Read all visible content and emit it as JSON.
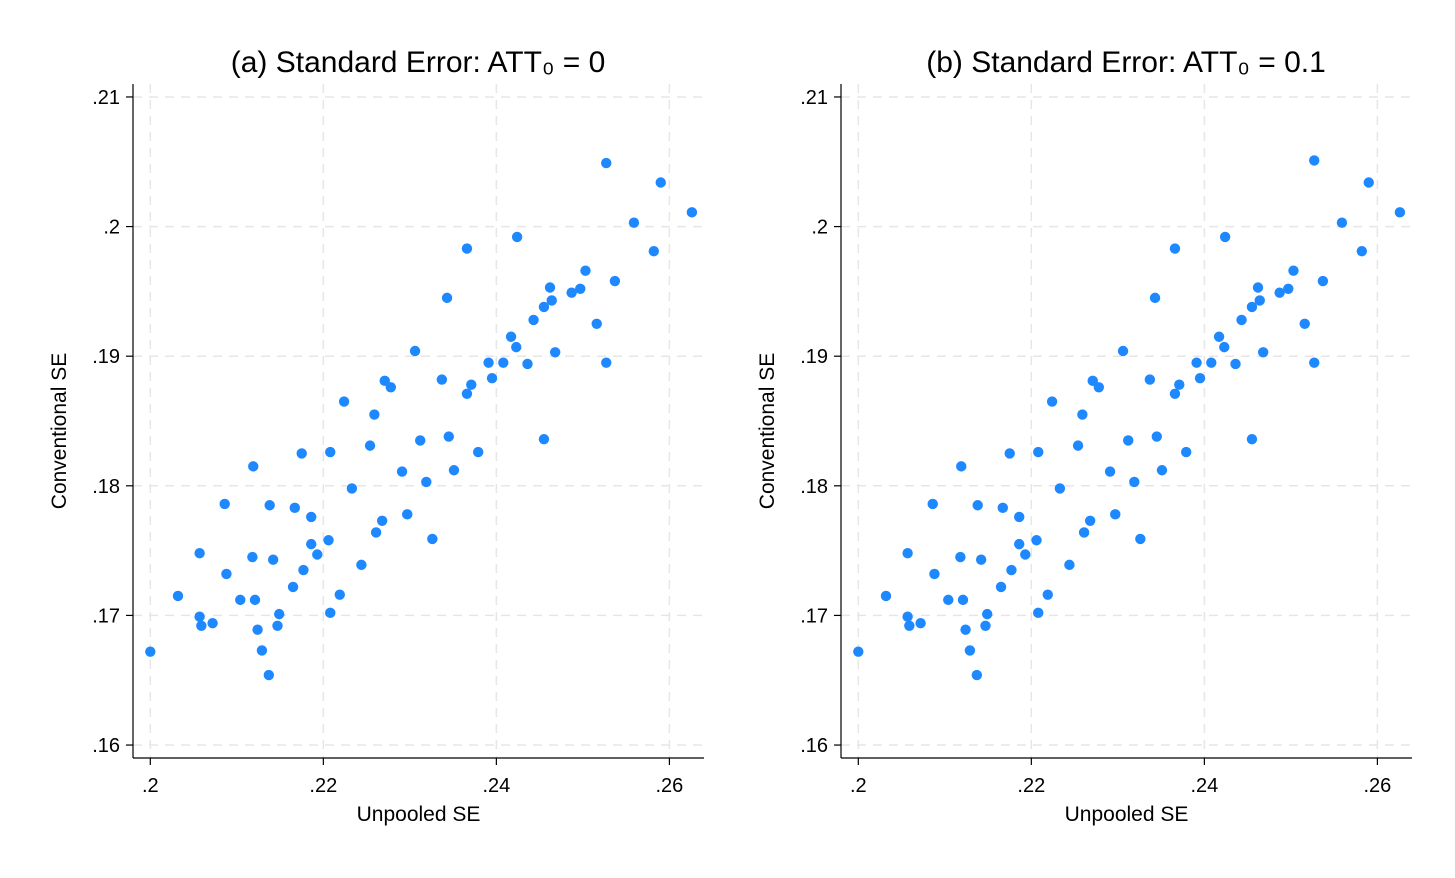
{
  "figure": {
    "panels": [
      {
        "title": "(a) Standard Error: ATT₀ = 0"
      },
      {
        "title": "(b) Standard Error: ATT₀ = 0.1"
      }
    ]
  },
  "chart_data": [
    {
      "type": "scatter",
      "title": "(a) Standard Error: ATT₀ = 0",
      "xlabel": "Unpooled SE",
      "ylabel": "Conventional SE",
      "xlim": [
        0.198,
        0.264
      ],
      "ylim": [
        0.159,
        0.211
      ],
      "xticks": [
        0.2,
        0.22,
        0.24,
        0.26
      ],
      "xtick_labels": [
        ".2",
        ".22",
        ".24",
        ".26"
      ],
      "yticks": [
        0.16,
        0.17,
        0.18,
        0.19,
        0.2,
        0.21
      ],
      "ytick_labels": [
        ".16",
        ".17",
        ".18",
        ".19",
        ".2",
        ".21"
      ],
      "grid": true,
      "marker_color": "#1e88ff",
      "series": [
        {
          "x": [
            0.2,
            0.2032,
            0.2057,
            0.2057,
            0.2059,
            0.2072,
            0.2086,
            0.2088,
            0.2119,
            0.2124,
            0.2129,
            0.2137,
            0.2147,
            0.2149,
            0.2165,
            0.2177,
            0.2186,
            0.2193,
            0.2206,
            0.2219,
            0.2244,
            0.2261,
            0.2319,
            0.2345,
            0.2371,
            0.2395,
            0.2423,
            0.2455,
            0.2462,
            0.2503,
            0.2527,
            0.2537,
            0.2559,
            0.2582,
            0.259,
            0.2626,
            0.2104,
            0.2118,
            0.2138,
            0.2167,
            0.2175,
            0.2186,
            0.2208,
            0.2233,
            0.2259,
            0.2278,
            0.2291,
            0.2312,
            0.2337,
            0.2366,
            0.2391,
            0.2417,
            0.2443,
            0.2464,
            0.2487,
            0.2516,
            0.2527,
            0.2455,
            0.2366,
            0.2306,
            0.2268,
            0.2208,
            0.2142,
            0.2121,
            0.2224,
            0.2254,
            0.2271,
            0.2297,
            0.2326,
            0.2351,
            0.2379,
            0.2408,
            0.2436,
            0.2468,
            0.2497,
            0.2424,
            0.2343
          ],
          "y": [
            0.1672,
            0.1715,
            0.1699,
            0.1748,
            0.1692,
            0.1694,
            0.1786,
            0.1732,
            0.1815,
            0.1689,
            0.1673,
            0.1654,
            0.1692,
            0.1701,
            0.1722,
            0.1735,
            0.1755,
            0.1747,
            0.1758,
            0.1716,
            0.1739,
            0.1764,
            0.1803,
            0.1838,
            0.1878,
            0.1883,
            0.1907,
            0.1938,
            0.1953,
            0.1966,
            0.2049,
            0.1958,
            0.2003,
            0.1981,
            0.2034,
            0.2011,
            0.1712,
            0.1745,
            0.1785,
            0.1783,
            0.1825,
            0.1776,
            0.1826,
            0.1798,
            0.1855,
            0.1876,
            0.1811,
            0.1835,
            0.1882,
            0.1871,
            0.1895,
            0.1915,
            0.1928,
            0.1943,
            0.1949,
            0.1925,
            0.1895,
            0.1836,
            0.1983,
            0.1904,
            0.1773,
            0.1702,
            0.1743,
            0.1712,
            0.1865,
            0.1831,
            0.1881,
            0.1778,
            0.1759,
            0.1812,
            0.1826,
            0.1895,
            0.1894,
            0.1903,
            0.1952,
            0.1992,
            0.1945
          ]
        }
      ]
    },
    {
      "type": "scatter",
      "title": "(b) Standard Error: ATT₀ = 0.1",
      "xlabel": "Unpooled SE",
      "ylabel": "Conventional SE",
      "xlim": [
        0.198,
        0.264
      ],
      "ylim": [
        0.159,
        0.211
      ],
      "xticks": [
        0.2,
        0.22,
        0.24,
        0.26
      ],
      "xtick_labels": [
        ".2",
        ".22",
        ".24",
        ".26"
      ],
      "yticks": [
        0.16,
        0.17,
        0.18,
        0.19,
        0.2,
        0.21
      ],
      "ytick_labels": [
        ".16",
        ".17",
        ".18",
        ".19",
        ".2",
        ".21"
      ],
      "grid": true,
      "marker_color": "#1e88ff",
      "series": [
        {
          "x": [
            0.2,
            0.2032,
            0.2057,
            0.2057,
            0.2059,
            0.2072,
            0.2086,
            0.2088,
            0.2119,
            0.2124,
            0.2129,
            0.2137,
            0.2147,
            0.2149,
            0.2165,
            0.2177,
            0.2186,
            0.2193,
            0.2206,
            0.2219,
            0.2244,
            0.2261,
            0.2319,
            0.2345,
            0.2371,
            0.2395,
            0.2423,
            0.2455,
            0.2462,
            0.2503,
            0.2527,
            0.2537,
            0.2559,
            0.2582,
            0.259,
            0.2626,
            0.2104,
            0.2118,
            0.2138,
            0.2167,
            0.2175,
            0.2186,
            0.2208,
            0.2233,
            0.2259,
            0.2278,
            0.2291,
            0.2312,
            0.2337,
            0.2366,
            0.2391,
            0.2417,
            0.2443,
            0.2464,
            0.2487,
            0.2516,
            0.2527,
            0.2455,
            0.2366,
            0.2306,
            0.2268,
            0.2208,
            0.2142,
            0.2121,
            0.2224,
            0.2254,
            0.2271,
            0.2297,
            0.2326,
            0.2351,
            0.2379,
            0.2408,
            0.2436,
            0.2468,
            0.2497,
            0.2424,
            0.2343
          ],
          "y": [
            0.1672,
            0.1715,
            0.1699,
            0.1748,
            0.1692,
            0.1694,
            0.1786,
            0.1732,
            0.1815,
            0.1689,
            0.1673,
            0.1654,
            0.1692,
            0.1701,
            0.1722,
            0.1735,
            0.1755,
            0.1747,
            0.1758,
            0.1716,
            0.1739,
            0.1764,
            0.1803,
            0.1838,
            0.1878,
            0.1883,
            0.1907,
            0.1938,
            0.1953,
            0.1966,
            0.2051,
            0.1958,
            0.2003,
            0.1981,
            0.2034,
            0.2011,
            0.1712,
            0.1745,
            0.1785,
            0.1783,
            0.1825,
            0.1776,
            0.1826,
            0.1798,
            0.1855,
            0.1876,
            0.1811,
            0.1835,
            0.1882,
            0.1871,
            0.1895,
            0.1915,
            0.1928,
            0.1943,
            0.1949,
            0.1925,
            0.1895,
            0.1836,
            0.1983,
            0.1904,
            0.1773,
            0.1702,
            0.1743,
            0.1712,
            0.1865,
            0.1831,
            0.1881,
            0.1778,
            0.1759,
            0.1812,
            0.1826,
            0.1895,
            0.1894,
            0.1903,
            0.1952,
            0.1992,
            0.1945
          ]
        }
      ]
    }
  ]
}
